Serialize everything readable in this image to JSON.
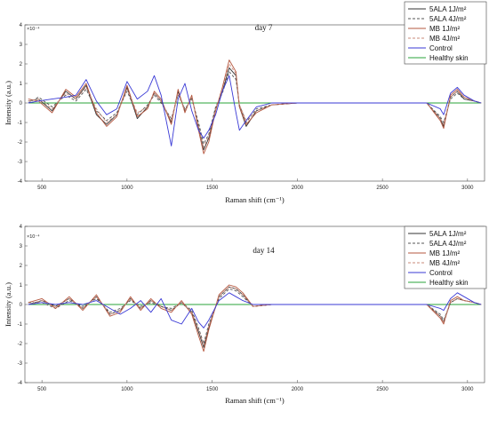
{
  "chart_data": [
    {
      "type": "line",
      "title": "day 7",
      "xlabel": "Raman shift (cm⁻¹)",
      "ylabel": "Intensity (a.u.)",
      "y_exponent": "×10⁻⁴",
      "xlim": [
        400,
        3100
      ],
      "ylim": [
        -4,
        4
      ],
      "x_ticks": [
        500,
        1000,
        1500,
        2000,
        2500,
        3000
      ],
      "y_ticks": [
        -4,
        -3,
        -2,
        -1,
        0,
        1,
        2,
        3,
        4
      ],
      "legend_position": "top-right",
      "series": [
        {
          "name": "5ALA 1J/m²",
          "color": "#333333",
          "dash": "solid",
          "x": [
            420,
            480,
            560,
            640,
            700,
            760,
            820,
            880,
            940,
            1000,
            1060,
            1120,
            1160,
            1200,
            1260,
            1300,
            1340,
            1380,
            1420,
            1450,
            1480,
            1520,
            1560,
            1600,
            1640,
            1660,
            1700,
            1760,
            1850,
            2000,
            2200,
            2400,
            2600,
            2760,
            2840,
            2860,
            2900,
            2940,
            2980,
            3040,
            3080
          ],
          "y": [
            0.1,
            0.2,
            -0.4,
            0.6,
            0.2,
            0.9,
            -0.6,
            -1.1,
            -0.6,
            0.8,
            -0.8,
            -0.2,
            0.5,
            0.1,
            -1.0,
            0.6,
            -0.4,
            0.3,
            -1.2,
            -2.4,
            -1.8,
            -0.3,
            0.6,
            1.8,
            1.4,
            -0.2,
            -1.2,
            -0.4,
            -0.1,
            0.0,
            0.0,
            0.0,
            0.0,
            0.0,
            -0.8,
            -1.2,
            0.3,
            0.6,
            0.2,
            0.1,
            0.0
          ]
        },
        {
          "name": "5ALA 4J/m²",
          "color": "#555555",
          "dash": "dashed",
          "x": [
            420,
            480,
            560,
            640,
            700,
            760,
            820,
            880,
            940,
            1000,
            1060,
            1120,
            1160,
            1200,
            1260,
            1300,
            1340,
            1380,
            1420,
            1450,
            1480,
            1520,
            1560,
            1600,
            1640,
            1660,
            1700,
            1760,
            1850,
            2000,
            2200,
            2400,
            2600,
            2760,
            2840,
            2860,
            2900,
            2940,
            2980,
            3040,
            3080
          ],
          "y": [
            0.0,
            0.3,
            -0.2,
            0.4,
            0.1,
            0.7,
            -0.4,
            -0.9,
            -0.5,
            0.6,
            -0.6,
            -0.1,
            0.4,
            0.0,
            -0.8,
            0.4,
            -0.3,
            0.2,
            -1.0,
            -2.1,
            -1.6,
            -0.2,
            0.5,
            1.6,
            1.2,
            -0.1,
            -1.0,
            -0.3,
            -0.1,
            0.0,
            0.0,
            0.0,
            0.0,
            0.0,
            -0.7,
            -1.0,
            0.2,
            0.5,
            0.2,
            0.1,
            0.0
          ]
        },
        {
          "name": "MB 1J/m²",
          "color": "#b5573f",
          "dash": "solid",
          "x": [
            420,
            480,
            560,
            640,
            700,
            760,
            820,
            880,
            940,
            1000,
            1060,
            1120,
            1160,
            1200,
            1260,
            1300,
            1340,
            1380,
            1420,
            1450,
            1480,
            1520,
            1560,
            1600,
            1640,
            1660,
            1700,
            1760,
            1850,
            2000,
            2200,
            2400,
            2600,
            2760,
            2840,
            2860,
            2900,
            2940,
            2980,
            3040,
            3080
          ],
          "y": [
            0.2,
            0.1,
            -0.5,
            0.7,
            0.3,
            1.0,
            -0.5,
            -1.2,
            -0.7,
            0.9,
            -0.7,
            -0.3,
            0.6,
            0.2,
            -1.1,
            0.7,
            -0.5,
            0.4,
            -1.4,
            -2.6,
            -2.0,
            -0.4,
            0.8,
            2.2,
            1.6,
            -0.2,
            -1.1,
            -0.5,
            -0.1,
            0.0,
            0.0,
            0.0,
            0.0,
            0.0,
            -0.9,
            -1.3,
            0.4,
            0.7,
            0.3,
            0.1,
            0.0
          ]
        },
        {
          "name": "MB 4J/m²",
          "color": "#c98a7a",
          "dash": "dashed",
          "x": [
            420,
            480,
            560,
            640,
            700,
            760,
            820,
            880,
            940,
            1000,
            1060,
            1120,
            1160,
            1200,
            1260,
            1300,
            1340,
            1380,
            1420,
            1450,
            1480,
            1520,
            1560,
            1600,
            1640,
            1660,
            1700,
            1760,
            1850,
            2000,
            2200,
            2400,
            2600,
            2760,
            2840,
            2860,
            2900,
            2940,
            2980,
            3040,
            3080
          ],
          "y": [
            0.1,
            0.2,
            -0.3,
            0.5,
            0.2,
            0.8,
            -0.3,
            -1.0,
            -0.6,
            0.7,
            -0.5,
            -0.2,
            0.5,
            0.1,
            -0.9,
            0.5,
            -0.4,
            0.3,
            -1.2,
            -2.3,
            -1.7,
            -0.3,
            0.7,
            2.0,
            1.5,
            -0.1,
            -0.9,
            -0.4,
            -0.1,
            0.0,
            0.0,
            0.0,
            0.0,
            0.0,
            -0.8,
            -1.1,
            0.3,
            0.6,
            0.3,
            0.1,
            0.0
          ]
        },
        {
          "name": "Control",
          "color": "#3a3ad6",
          "dash": "solid",
          "x": [
            420,
            480,
            560,
            640,
            700,
            760,
            820,
            880,
            940,
            1000,
            1060,
            1120,
            1160,
            1200,
            1260,
            1300,
            1340,
            1380,
            1420,
            1450,
            1480,
            1520,
            1560,
            1600,
            1640,
            1660,
            1700,
            1760,
            1850,
            2000,
            2200,
            2400,
            2600,
            2760,
            2840,
            2860,
            2900,
            2940,
            2980,
            3040,
            3080
          ],
          "y": [
            0.0,
            0.1,
            0.2,
            0.3,
            0.4,
            1.2,
            0.1,
            -0.6,
            -0.3,
            1.1,
            0.2,
            0.6,
            1.4,
            0.4,
            -2.2,
            0.2,
            1.0,
            -0.4,
            -1.4,
            -1.8,
            -1.4,
            -0.6,
            0.6,
            1.4,
            -0.5,
            -1.4,
            -0.9,
            -0.2,
            0.0,
            0.0,
            0.0,
            0.0,
            0.0,
            0.0,
            -0.3,
            -0.6,
            0.5,
            0.8,
            0.4,
            0.1,
            0.0
          ]
        },
        {
          "name": "Healthy skin",
          "color": "#2aa33a",
          "dash": "solid",
          "x": [
            420,
            3080
          ],
          "y": [
            0.0,
            0.0
          ]
        }
      ]
    },
    {
      "type": "line",
      "title": "day 14",
      "xlabel": "Raman shift (cm⁻¹)",
      "ylabel": "Intensity (a.u.)",
      "y_exponent": "×10⁻⁴",
      "xlim": [
        400,
        3100
      ],
      "ylim": [
        -4,
        4
      ],
      "x_ticks": [
        500,
        1000,
        1500,
        2000,
        2500,
        3000
      ],
      "y_ticks": [
        -4,
        -3,
        -2,
        -1,
        0,
        1,
        2,
        3,
        4
      ],
      "legend_position": "top-right",
      "series": [
        {
          "name": "5ALA 1J/m²",
          "color": "#333333",
          "dash": "solid",
          "x": [
            420,
            500,
            580,
            660,
            740,
            820,
            900,
            960,
            1020,
            1080,
            1140,
            1200,
            1260,
            1320,
            1380,
            1420,
            1450,
            1480,
            1540,
            1600,
            1640,
            1680,
            1740,
            1850,
            2000,
            2200,
            2400,
            2600,
            2760,
            2840,
            2860,
            2900,
            2940,
            2980,
            3040,
            3080
          ],
          "y": [
            0.0,
            0.2,
            -0.1,
            0.3,
            -0.2,
            0.4,
            -0.5,
            -0.3,
            0.3,
            -0.2,
            0.2,
            -0.1,
            -0.3,
            0.1,
            -0.4,
            -1.4,
            -2.2,
            -1.2,
            0.4,
            0.9,
            0.8,
            0.5,
            -0.1,
            0.0,
            0.0,
            0.0,
            0.0,
            0.0,
            0.0,
            -0.6,
            -0.9,
            0.1,
            0.3,
            0.2,
            0.1,
            0.0
          ]
        },
        {
          "name": "5ALA 4J/m²",
          "color": "#555555",
          "dash": "dashed",
          "x": [
            420,
            500,
            580,
            660,
            740,
            820,
            900,
            960,
            1020,
            1080,
            1140,
            1200,
            1260,
            1320,
            1380,
            1420,
            1450,
            1480,
            1540,
            1600,
            1640,
            1680,
            1740,
            1850,
            2000,
            2200,
            2400,
            2600,
            2760,
            2840,
            2860,
            2900,
            2940,
            2980,
            3040,
            3080
          ],
          "y": [
            0.1,
            0.1,
            -0.2,
            0.2,
            -0.1,
            0.3,
            -0.4,
            -0.2,
            0.2,
            -0.1,
            0.1,
            -0.1,
            -0.2,
            0.1,
            -0.3,
            -1.2,
            -2.0,
            -1.0,
            0.3,
            0.8,
            0.7,
            0.4,
            -0.1,
            0.0,
            0.0,
            0.0,
            0.0,
            0.0,
            0.0,
            -0.5,
            -0.8,
            0.1,
            0.3,
            0.2,
            0.1,
            0.0
          ]
        },
        {
          "name": "MB 1J/m²",
          "color": "#b5573f",
          "dash": "solid",
          "x": [
            420,
            500,
            580,
            660,
            740,
            820,
            900,
            960,
            1020,
            1080,
            1140,
            1200,
            1260,
            1320,
            1380,
            1420,
            1450,
            1480,
            1540,
            1600,
            1640,
            1680,
            1740,
            1850,
            2000,
            2200,
            2400,
            2600,
            2760,
            2840,
            2860,
            2900,
            2940,
            2980,
            3040,
            3080
          ],
          "y": [
            0.1,
            0.3,
            -0.2,
            0.4,
            -0.3,
            0.5,
            -0.6,
            -0.4,
            0.4,
            -0.3,
            0.3,
            -0.2,
            -0.4,
            0.2,
            -0.5,
            -1.6,
            -2.4,
            -1.3,
            0.5,
            1.0,
            0.9,
            0.6,
            -0.1,
            0.0,
            0.0,
            0.0,
            0.0,
            0.0,
            0.0,
            -0.7,
            -1.0,
            0.2,
            0.4,
            0.2,
            0.1,
            0.0
          ]
        },
        {
          "name": "MB 4J/m²",
          "color": "#c98a7a",
          "dash": "dashed",
          "x": [
            420,
            500,
            580,
            660,
            740,
            820,
            900,
            960,
            1020,
            1080,
            1140,
            1200,
            1260,
            1320,
            1380,
            1420,
            1450,
            1480,
            1540,
            1600,
            1640,
            1680,
            1740,
            1850,
            2000,
            2200,
            2400,
            2600,
            2760,
            2840,
            2860,
            2900,
            2940,
            2980,
            3040,
            3080
          ],
          "y": [
            0.0,
            0.2,
            -0.1,
            0.3,
            -0.2,
            0.4,
            -0.5,
            -0.3,
            0.3,
            -0.2,
            0.2,
            -0.1,
            -0.3,
            0.1,
            -0.4,
            -1.3,
            -2.1,
            -1.1,
            0.4,
            0.9,
            0.8,
            0.5,
            -0.1,
            0.0,
            0.0,
            0.0,
            0.0,
            0.0,
            0.0,
            -0.6,
            -0.9,
            0.1,
            0.3,
            0.2,
            0.1,
            0.0
          ]
        },
        {
          "name": "Control",
          "color": "#3a3ad6",
          "dash": "solid",
          "x": [
            420,
            500,
            580,
            660,
            740,
            820,
            900,
            960,
            1020,
            1080,
            1140,
            1200,
            1260,
            1320,
            1380,
            1420,
            1450,
            1480,
            1540,
            1600,
            1640,
            1680,
            1740,
            1850,
            2000,
            2200,
            2400,
            2600,
            2760,
            2840,
            2860,
            2900,
            2940,
            2980,
            3040,
            3080
          ],
          "y": [
            0.0,
            0.1,
            0.0,
            0.1,
            0.0,
            0.2,
            -0.2,
            -0.5,
            -0.2,
            0.2,
            -0.4,
            0.3,
            -0.8,
            -1.0,
            -0.2,
            -0.9,
            -1.2,
            -0.8,
            0.2,
            0.6,
            0.4,
            0.2,
            0.0,
            0.0,
            0.0,
            0.0,
            0.0,
            0.0,
            0.0,
            -0.2,
            -0.3,
            0.3,
            0.6,
            0.4,
            0.1,
            0.0
          ]
        },
        {
          "name": "Healthy skin",
          "color": "#2aa33a",
          "dash": "solid",
          "x": [
            420,
            3080
          ],
          "y": [
            0.0,
            0.0
          ]
        }
      ]
    }
  ]
}
